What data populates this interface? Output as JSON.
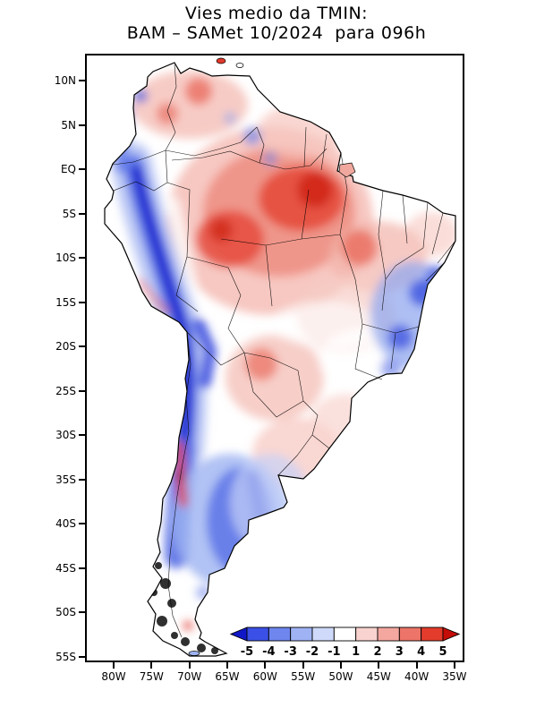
{
  "title": {
    "line1": "Vies medio da TMIN:",
    "line2": "BAM – SAMet 10/2024  para 096h"
  },
  "axes": {
    "lat_ticks": [
      "10N",
      "5N",
      "EQ",
      "5S",
      "10S",
      "15S",
      "20S",
      "25S",
      "30S",
      "35S",
      "40S",
      "45S",
      "50S",
      "55S"
    ],
    "lon_ticks": [
      "80W",
      "75W",
      "70W",
      "65W",
      "60W",
      "55W",
      "50W",
      "45W",
      "40W",
      "35W"
    ]
  },
  "colorbar": {
    "labels": [
      "-5",
      "-4",
      "-3",
      "-2",
      "-1",
      "1",
      "2",
      "3",
      "4",
      "5"
    ],
    "segment_colors": [
      "#3a50e6",
      "#6e86ee",
      "#9fb2f3",
      "#cfd9f9",
      "#ffffff",
      "#f9d3cf",
      "#f3a79f",
      "#ec7468",
      "#e33c2d"
    ],
    "arrow_left_color": "#1018c8",
    "arrow_right_color": "#c40d08",
    "outline_color": "#000000"
  },
  "chart_data": {
    "type": "heatmap",
    "title": "Vies medio da TMIN: BAM – SAMet 10/2024 para 096h",
    "variable": "Mean bias of minimum temperature (TMIN)",
    "model": "BAM – SAMet",
    "period": "10/2024",
    "forecast_hour": "096h",
    "x_ticks": [
      "80W",
      "75W",
      "70W",
      "65W",
      "60W",
      "55W",
      "50W",
      "45W",
      "40W",
      "35W"
    ],
    "y_ticks": [
      "10N",
      "5N",
      "EQ",
      "5S",
      "10S",
      "15S",
      "20S",
      "25S",
      "30S",
      "35S",
      "40S",
      "45S",
      "50S",
      "55S"
    ],
    "colorbar_levels": [
      -5,
      -4,
      -3,
      -2,
      -1,
      1,
      2,
      3,
      4,
      5
    ],
    "colorbar_colors": [
      "#1018c8",
      "#3a50e6",
      "#6e86ee",
      "#9fb2f3",
      "#cfd9f9",
      "#ffffff",
      "#f9d3cf",
      "#f3a79f",
      "#ec7468",
      "#e33c2d",
      "#c40d08"
    ],
    "legend_position": "bottom-inside",
    "grid": false,
    "regions": [
      {
        "area": "Amazon basin / central and northern Brazil",
        "bias": "+1 to +4"
      },
      {
        "area": "Venezuela / Colombia lowlands",
        "bias": "+1 to +3"
      },
      {
        "area": "Andes cordillera (Peru, Bolivia, northern Chile)",
        "bias": "-3 to -5"
      },
      {
        "area": "Central Chile coastal strip (~29S-33S)",
        "bias": "+3 to +5"
      },
      {
        "area": "Patagonia / southern Argentina",
        "bias": "-1 to -4"
      },
      {
        "area": "Eastern Brazil (Bahia / Minas Gerais)",
        "bias": "-1 to -3"
      },
      {
        "area": "Paraguay / Chaco / La Plata basin",
        "bias": "0 to +2"
      },
      {
        "area": "Northeast Brazil coast",
        "bias": "0 to +1"
      }
    ]
  }
}
